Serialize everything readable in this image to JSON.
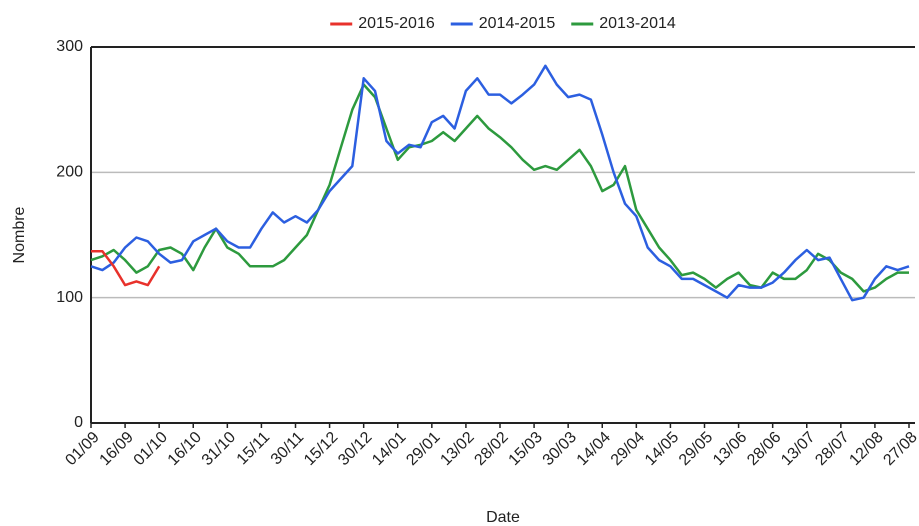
{
  "chart_data": {
    "type": "line",
    "x_label": "Date",
    "y_label": "Nombre",
    "categories": [
      "01/09",
      null,
      null,
      "16/09",
      null,
      null,
      "01/10",
      null,
      null,
      "16/10",
      null,
      null,
      "31/10",
      null,
      null,
      "15/11",
      null,
      null,
      "30/11",
      null,
      null,
      "15/12",
      null,
      null,
      "30/12",
      null,
      null,
      "14/01",
      null,
      null,
      "29/01",
      null,
      null,
      "13/02",
      null,
      null,
      "28/02",
      null,
      null,
      "15/03",
      null,
      null,
      "30/03",
      null,
      null,
      "14/04",
      null,
      null,
      "29/04",
      null,
      null,
      "14/05",
      null,
      null,
      "29/05",
      null,
      null,
      "13/06",
      null,
      null,
      "28/06",
      null,
      null,
      "13/07",
      null,
      null,
      "28/07",
      null,
      null,
      "12/08",
      null,
      null,
      "27/08"
    ],
    "series": [
      {
        "name": "2015-2016",
        "color": "#e8312b",
        "values": [
          137,
          137,
          125,
          110,
          113,
          110,
          125,
          null,
          null,
          null,
          null,
          null,
          null,
          null,
          null,
          null,
          null,
          null,
          null,
          null,
          null,
          null,
          null,
          null,
          null,
          null,
          null,
          null,
          null,
          null,
          null,
          null,
          null,
          null,
          null,
          null,
          null,
          null,
          null,
          null,
          null,
          null,
          null,
          null,
          null,
          null,
          null,
          null,
          null,
          null,
          null,
          null,
          null,
          null,
          null,
          null,
          null,
          null,
          null,
          null,
          null,
          null,
          null,
          null,
          null,
          null,
          null,
          null,
          null,
          null,
          null,
          null,
          null
        ]
      },
      {
        "name": "2014-2015",
        "color": "#2c5fe0",
        "values": [
          125,
          122,
          128,
          140,
          148,
          145,
          135,
          128,
          130,
          145,
          150,
          155,
          145,
          140,
          140,
          155,
          168,
          160,
          165,
          160,
          170,
          185,
          195,
          205,
          275,
          265,
          225,
          215,
          222,
          220,
          240,
          245,
          235,
          265,
          275,
          262,
          262,
          255,
          262,
          270,
          285,
          270,
          260,
          262,
          258,
          230,
          200,
          175,
          165,
          140,
          130,
          125,
          115,
          115,
          110,
          105,
          100,
          110,
          108,
          108,
          112,
          120,
          130,
          138,
          130,
          132,
          115,
          98,
          100,
          115,
          125,
          122,
          125
        ]
      },
      {
        "name": "2013-2014",
        "color": "#2d9a3e",
        "values": [
          130,
          133,
          138,
          130,
          120,
          125,
          138,
          140,
          135,
          122,
          140,
          155,
          140,
          135,
          125,
          125,
          125,
          130,
          140,
          150,
          170,
          190,
          220,
          250,
          270,
          260,
          235,
          210,
          220,
          222,
          225,
          232,
          225,
          235,
          245,
          235,
          228,
          220,
          210,
          202,
          205,
          202,
          210,
          218,
          205,
          185,
          190,
          205,
          170,
          155,
          140,
          130,
          118,
          120,
          115,
          108,
          115,
          120,
          110,
          108,
          120,
          115,
          115,
          122,
          135,
          130,
          120,
          115,
          105,
          108,
          115,
          120,
          120
        ]
      }
    ],
    "ylim": [
      0,
      300
    ],
    "yticks": [
      0,
      100,
      200,
      300
    ],
    "grid": true,
    "legend": "top"
  }
}
